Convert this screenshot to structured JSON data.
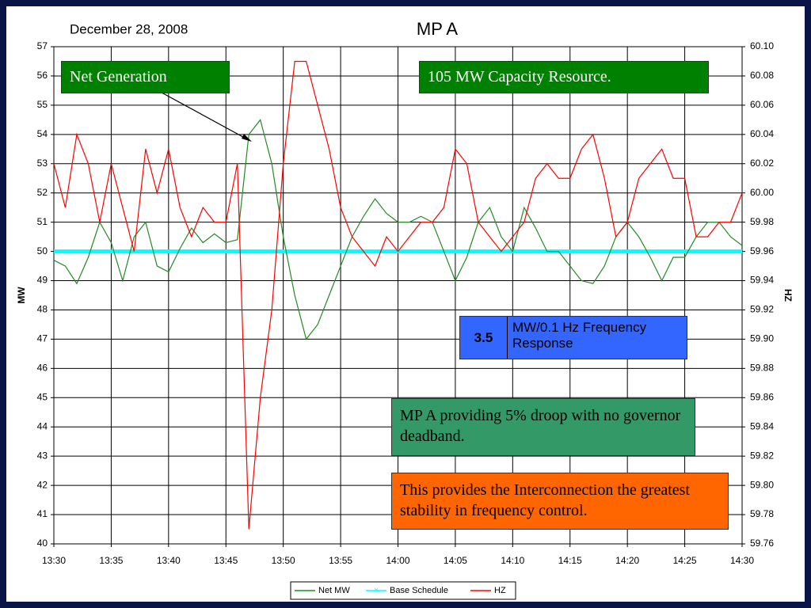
{
  "chart_data": {
    "type": "line",
    "title": "MP A",
    "date_label": "December 28, 2008",
    "y_label": "MW",
    "y2_label": "HZ",
    "grid": true,
    "legend": "bottom",
    "x": [
      "13:30",
      "13:31",
      "13:32",
      "13:33",
      "13:34",
      "13:35",
      "13:36",
      "13:37",
      "13:38",
      "13:39",
      "13:40",
      "13:41",
      "13:42",
      "13:43",
      "13:44",
      "13:45",
      "13:46",
      "13:47",
      "13:48",
      "13:49",
      "13:50",
      "13:51",
      "13:52",
      "13:53",
      "13:54",
      "13:55",
      "13:56",
      "13:57",
      "13:58",
      "13:59",
      "14:00",
      "14:01",
      "14:02",
      "14:03",
      "14:04",
      "14:05",
      "14:06",
      "14:07",
      "14:08",
      "14:09",
      "14:10",
      "14:11",
      "14:12",
      "14:13",
      "14:14",
      "14:15",
      "14:16",
      "14:17",
      "14:18",
      "14:19",
      "14:20",
      "14:21",
      "14:22",
      "14:23",
      "14:24",
      "14:25",
      "14:26",
      "14:27",
      "14:28",
      "14:29",
      "14:30"
    ],
    "xticks": [
      "13:30",
      "13:35",
      "13:40",
      "13:45",
      "13:50",
      "13:55",
      "14:00",
      "14:05",
      "14:10",
      "14:15",
      "14:20",
      "14:25",
      "14:30"
    ],
    "ylim": [
      40,
      57
    ],
    "yticks": [
      40,
      41,
      42,
      43,
      44,
      45,
      46,
      47,
      48,
      49,
      50,
      51,
      52,
      53,
      54,
      55,
      56,
      57
    ],
    "y2lim": [
      59.76,
      60.1
    ],
    "y2ticks": [
      59.76,
      59.78,
      {
        "value": 59.8,
        "label": "59.80"
      },
      59.82,
      59.84,
      59.86,
      59.88,
      {
        "value": 59.9,
        "label": "59.90"
      },
      59.92,
      59.94,
      59.96,
      59.98,
      {
        "value": 60,
        "label": "60.00"
      },
      60.02,
      60.04,
      60.06,
      60.08,
      {
        "value": 60.1,
        "label": "60.10"
      }
    ],
    "series": [
      {
        "name": "Net MW",
        "color": "#228b22",
        "values": [
          49.7,
          49.5,
          48.9,
          49.8,
          51.0,
          50.3,
          49.0,
          50.5,
          51.0,
          49.5,
          49.3,
          50.1,
          50.8,
          50.3,
          50.6,
          50.3,
          50.4,
          54.0,
          54.5,
          53.0,
          50.5,
          48.5,
          47.0,
          47.5,
          48.5,
          49.5,
          50.5,
          51.2,
          51.8,
          51.3,
          51.0,
          51.0,
          51.2,
          51.0,
          50.0,
          49.0,
          49.8,
          51.0,
          51.5,
          50.5,
          50.0,
          51.5,
          50.8,
          50.0,
          50.0,
          49.5,
          49.0,
          48.9,
          49.5,
          50.5,
          51.0,
          50.5,
          49.8,
          49.0,
          49.8,
          49.8,
          50.5,
          51.0,
          51.0,
          50.5,
          50.2
        ]
      },
      {
        "name": "Base Schedule",
        "color": "#00ffff",
        "values": [
          50,
          50,
          50,
          50,
          50,
          50,
          50,
          50,
          50,
          50,
          50,
          50,
          50,
          50,
          50,
          50,
          50,
          50,
          50,
          50,
          50,
          50,
          50,
          50,
          50,
          50,
          50,
          50,
          50,
          50,
          50,
          50,
          50,
          50,
          50,
          50,
          50,
          50,
          50,
          50,
          50,
          50,
          50,
          50,
          50,
          50,
          50,
          50,
          50,
          50,
          50,
          50,
          50,
          50,
          50,
          50,
          50,
          50,
          50,
          50,
          50
        ]
      },
      {
        "name": "HZ",
        "color": "#ff0000",
        "axis": "y2",
        "values": [
          60.02,
          59.99,
          60.04,
          60.02,
          59.98,
          60.02,
          59.99,
          59.96,
          60.03,
          60.0,
          60.03,
          59.99,
          59.97,
          59.99,
          59.98,
          59.98,
          60.02,
          59.77,
          59.86,
          59.92,
          60.02,
          60.09,
          60.09,
          60.06,
          60.03,
          59.99,
          59.97,
          59.96,
          59.95,
          59.97,
          59.96,
          59.97,
          59.98,
          59.98,
          59.99,
          60.03,
          60.02,
          59.98,
          59.97,
          59.96,
          59.97,
          59.98,
          60.01,
          60.02,
          60.01,
          60.01,
          60.03,
          60.04,
          60.01,
          59.97,
          59.98,
          60.01,
          60.02,
          60.03,
          60.01,
          60.01,
          59.97,
          59.97,
          59.98,
          59.98,
          60.0
        ]
      }
    ],
    "annotations": [
      "Net Generation",
      "105 MW Capacity Resource.",
      "MP A providing 5% droop with no governor deadband.",
      "This provides the Interconnection the greatest stability in frequency control."
    ],
    "response_value": 3.5,
    "response_label": "MW/0.1 Hz Frequency Response"
  }
}
